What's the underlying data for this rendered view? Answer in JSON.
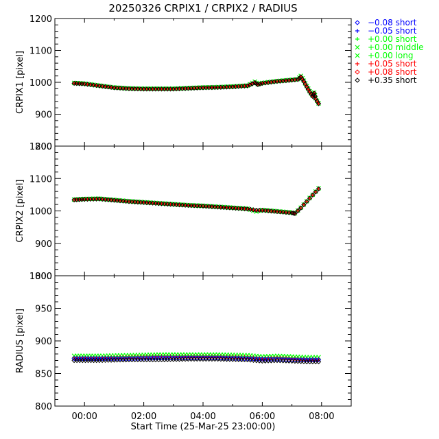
{
  "title": "20250326  CRPIX1  /  CRPIX2  /  RADIUS",
  "xlabel": "Start Time (25-Mar-25 23:00:00)",
  "colors": {
    "axis": "#000000",
    "blue": "#0000ff",
    "green": "#00ff00",
    "red": "#ff0000",
    "black": "#000000"
  },
  "legend": [
    {
      "symbol": "diamond",
      "value": "-0.08",
      "label": "short",
      "color": "#0000ff",
      "text": "−0.08 short"
    },
    {
      "symbol": "plus",
      "value": "-0.05",
      "label": "short",
      "color": "#0000ff",
      "text": "−0.05 short"
    },
    {
      "symbol": "plus",
      "value": "+0.00",
      "label": "short",
      "color": "#00ff00",
      "text": "+0.00 short"
    },
    {
      "symbol": "cross",
      "value": "+0.00",
      "label": "middle",
      "color": "#00ff00",
      "text": "+0.00 middle"
    },
    {
      "symbol": "cross",
      "value": "+0.00",
      "label": "long",
      "color": "#00ff00",
      "text": "+0.00 long"
    },
    {
      "symbol": "plus",
      "value": "+0.05",
      "label": "short",
      "color": "#ff0000",
      "text": "+0.05 short"
    },
    {
      "symbol": "diamond",
      "value": "+0.08",
      "label": "short",
      "color": "#ff0000",
      "text": "+0.08 short"
    },
    {
      "symbol": "diamond",
      "value": "+0.35",
      "label": "short",
      "color": "#000000",
      "text": "+0.35 short"
    }
  ],
  "chart_data": [
    {
      "type": "scatter",
      "title": "CRPIX1",
      "ylabel": "CRPIX1 [pixel]",
      "ylim": [
        800,
        1200
      ],
      "yticks": [
        "800",
        "900",
        "1000",
        "1100",
        "1200"
      ],
      "xlim": [
        -1,
        9
      ],
      "xticks": [
        "00:00",
        "02:00",
        "04:00",
        "06:00",
        "08:00"
      ],
      "x_hours": [
        -0.35,
        0.0,
        0.5,
        1.0,
        1.5,
        2.0,
        2.5,
        3.0,
        3.5,
        4.0,
        4.5,
        5.0,
        5.5,
        5.75,
        5.85,
        6.0,
        6.5,
        7.0,
        7.2,
        7.3,
        7.4,
        7.5,
        7.6,
        7.7,
        7.75,
        7.8,
        7.9
      ],
      "series": [
        {
          "name": "+0.00 short",
          "color": "#00ff00",
          "values": [
            998,
            996,
            990,
            984,
            981,
            980,
            980,
            980,
            982,
            984,
            985,
            987,
            990,
            1002,
            994,
            998,
            1004,
            1008,
            1010,
            1020,
            1005,
            988,
            972,
            958,
            968,
            950,
            934
          ]
        },
        {
          "name": "+0.05 short",
          "color": "#ff0000",
          "values": [
            997,
            995,
            989,
            983,
            980,
            979,
            979,
            979,
            981,
            983,
            984,
            986,
            989,
            1000,
            993,
            997,
            1003,
            1007,
            1009,
            1018,
            1003,
            986,
            970,
            956,
            966,
            948,
            933
          ]
        },
        {
          "name": "+0.35 short",
          "color": "#000000",
          "values": [
            997,
            995,
            989,
            983,
            980,
            979,
            979,
            979,
            981,
            983,
            984,
            986,
            989,
            999,
            993,
            997,
            1003,
            1007,
            1009,
            1017,
            1003,
            986,
            970,
            956,
            966,
            948,
            933
          ]
        }
      ]
    },
    {
      "type": "scatter",
      "title": "CRPIX2",
      "ylabel": "CRPIX2 [pixel]",
      "ylim": [
        800,
        1200
      ],
      "yticks": [
        "800",
        "900",
        "1000",
        "1100",
        "1200"
      ],
      "xlim": [
        -1,
        9
      ],
      "xticks": [
        "00:00",
        "02:00",
        "04:00",
        "06:00",
        "08:00"
      ],
      "x_hours": [
        -0.35,
        0.0,
        0.5,
        1.0,
        1.5,
        2.0,
        2.5,
        3.0,
        3.5,
        4.0,
        4.5,
        5.0,
        5.5,
        5.8,
        6.0,
        6.5,
        7.0,
        7.1,
        7.3,
        7.5,
        7.7,
        7.9
      ],
      "series": [
        {
          "name": "+0.00 short",
          "color": "#00ff00",
          "values": [
            1035,
            1037,
            1038,
            1034,
            1030,
            1027,
            1024,
            1021,
            1018,
            1016,
            1013,
            1010,
            1007,
            998,
            1003,
            999,
            995,
            993,
            1010,
            1030,
            1050,
            1070
          ]
        },
        {
          "name": "+0.05 short",
          "color": "#ff0000",
          "values": [
            1034,
            1036,
            1037,
            1033,
            1029,
            1026,
            1023,
            1020,
            1017,
            1015,
            1012,
            1009,
            1006,
            1001,
            1002,
            998,
            994,
            992,
            1009,
            1029,
            1049,
            1068
          ]
        },
        {
          "name": "+0.35 short",
          "color": "#000000",
          "values": [
            1034,
            1036,
            1037,
            1033,
            1029,
            1026,
            1023,
            1020,
            1017,
            1015,
            1012,
            1009,
            1006,
            1002,
            1002,
            998,
            994,
            992,
            1009,
            1029,
            1049,
            1068
          ]
        }
      ]
    },
    {
      "type": "scatter",
      "title": "RADIUS",
      "ylabel": "RADIUS [pixel]",
      "ylim": [
        800,
        1000
      ],
      "yticks": [
        "800",
        "850",
        "900",
        "950",
        "1000"
      ],
      "xlim": [
        -1,
        9
      ],
      "xticks": [
        "00:00",
        "02:00",
        "04:00",
        "06:00",
        "08:00"
      ],
      "x_hours": [
        -0.35,
        0.5,
        1.5,
        2.5,
        3.5,
        4.5,
        5.5,
        6.0,
        6.5,
        7.0,
        7.5,
        7.9
      ],
      "series": [
        {
          "name": "+0.00 long",
          "color": "#00ff00",
          "values": [
            877,
            877,
            878,
            879,
            879,
            879,
            878,
            876,
            877,
            876,
            875,
            875
          ]
        },
        {
          "name": "+0.05 short",
          "color": "#ff0000",
          "values": [
            874,
            874,
            875,
            876,
            876,
            876,
            875,
            873,
            874,
            873,
            872,
            872
          ]
        },
        {
          "name": "-0.08 short",
          "color": "#0000ff",
          "values": [
            873,
            873,
            873,
            874,
            874,
            874,
            873,
            872,
            872,
            871,
            871,
            871
          ]
        },
        {
          "name": "+0.35 short",
          "color": "#000000",
          "values": [
            870,
            870,
            871,
            871,
            872,
            872,
            871,
            869,
            870,
            869,
            868,
            868
          ]
        }
      ]
    }
  ]
}
